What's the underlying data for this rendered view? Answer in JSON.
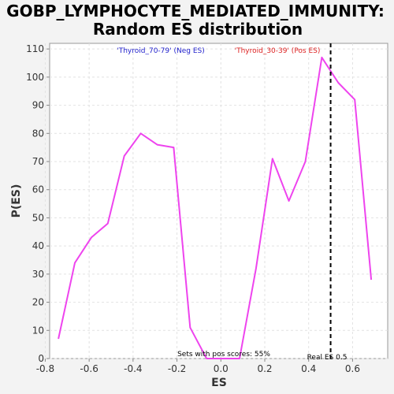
{
  "chart_data": {
    "type": "line",
    "title_line1": "GOBP_LYMPHOCYTE_MEDIATED_IMMUNITY:",
    "title_line2": "Random ES distribution",
    "xlabel": "ES",
    "ylabel": "P(ES)",
    "xlim": [
      -0.78,
      0.76
    ],
    "ylim": [
      0,
      112
    ],
    "xticks": [
      "-0.8",
      "-0.6",
      "-0.4",
      "-0.2",
      "0.0",
      "0.2",
      "0.4",
      "0.6"
    ],
    "xtick_values": [
      -0.8,
      -0.6,
      -0.4,
      -0.2,
      0.0,
      0.2,
      0.4,
      0.6
    ],
    "yticks": [
      "0",
      "10",
      "20",
      "30",
      "40",
      "50",
      "60",
      "70",
      "80",
      "90",
      "100",
      "110"
    ],
    "ytick_values": [
      0,
      10,
      20,
      30,
      40,
      50,
      60,
      70,
      80,
      90,
      100,
      110
    ],
    "grid": true,
    "line_color": "#ee44ee",
    "series": [
      {
        "x": [
          -0.74,
          -0.665,
          -0.59,
          -0.515,
          -0.44,
          -0.365,
          -0.29,
          -0.215,
          -0.14,
          -0.065,
          0.01,
          0.085,
          0.16,
          0.235,
          0.31,
          0.385,
          0.46,
          0.535,
          0.61,
          0.685
        ],
        "y": [
          7,
          34,
          43,
          48,
          72,
          80,
          76,
          75,
          11,
          0,
          0,
          0,
          32,
          71,
          56,
          70,
          107,
          98,
          92,
          28
        ]
      }
    ],
    "neg_label": "'Thyroid_70-79' (Neg ES)",
    "pos_label": "'Thyroid_30-39' (Pos ES)",
    "neg_color": "#2222cc",
    "pos_color": "#dd2222",
    "real_es": 0.5,
    "real_es_label": "Real ES 0.5",
    "pos_scores_label": "Sets with pos scores: 55%"
  }
}
